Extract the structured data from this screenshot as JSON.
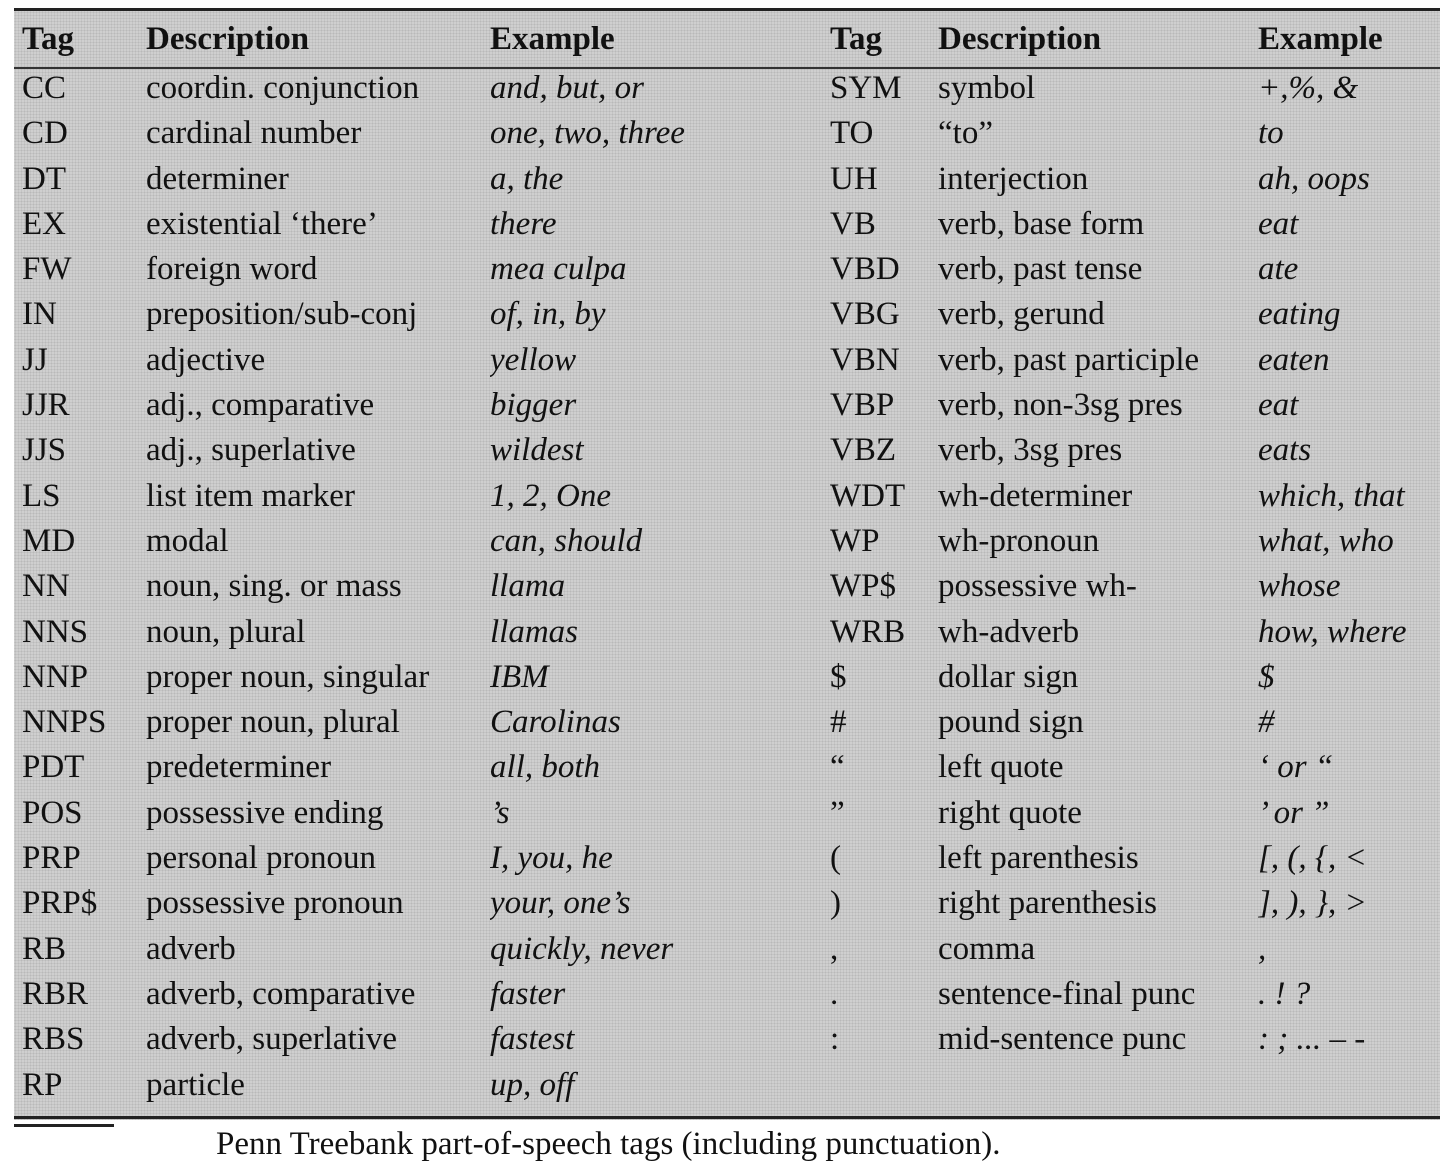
{
  "table": {
    "headers": [
      "Tag",
      "Description",
      "Example",
      "Tag",
      "Description",
      "Example"
    ],
    "rows": [
      [
        "CC",
        "coordin. conjunction",
        "and, but, or",
        "SYM",
        "symbol",
        "+,%, &"
      ],
      [
        "CD",
        "cardinal number",
        "one, two, three",
        "TO",
        "“to”",
        "to"
      ],
      [
        "DT",
        "determiner",
        "a, the",
        "UH",
        "interjection",
        "ah, oops"
      ],
      [
        "EX",
        "existential ‘there’",
        "there",
        "VB",
        "verb, base form",
        "eat"
      ],
      [
        "FW",
        "foreign word",
        "mea culpa",
        "VBD",
        "verb, past tense",
        "ate"
      ],
      [
        "IN",
        "preposition/sub-conj",
        "of, in, by",
        "VBG",
        "verb, gerund",
        "eating"
      ],
      [
        "JJ",
        "adjective",
        "yellow",
        "VBN",
        "verb, past participle",
        "eaten"
      ],
      [
        "JJR",
        "adj., comparative",
        "bigger",
        "VBP",
        "verb, non-3sg pres",
        "eat"
      ],
      [
        "JJS",
        "adj., superlative",
        "wildest",
        "VBZ",
        "verb, 3sg pres",
        "eats"
      ],
      [
        "LS",
        "list item marker",
        "1, 2, One",
        "WDT",
        "wh-determiner",
        "which, that"
      ],
      [
        "MD",
        "modal",
        "can, should",
        "WP",
        "wh-pronoun",
        "what, who"
      ],
      [
        "NN",
        "noun, sing. or mass",
        "llama",
        "WP$",
        "possessive wh-",
        "whose"
      ],
      [
        "NNS",
        "noun, plural",
        "llamas",
        "WRB",
        "wh-adverb",
        "how, where"
      ],
      [
        "NNP",
        "proper noun, singular",
        "IBM",
        "$",
        "dollar sign",
        "$"
      ],
      [
        "NNPS",
        "proper noun, plural",
        "Carolinas",
        "#",
        "pound sign",
        "#"
      ],
      [
        "PDT",
        "predeterminer",
        "all, both",
        "“",
        "left quote",
        "‘ or “"
      ],
      [
        "POS",
        "possessive ending",
        "’s",
        "”",
        "right quote",
        "’ or ”"
      ],
      [
        "PRP",
        "personal pronoun",
        "I, you, he",
        "(",
        "left parenthesis",
        "[, (, {, <"
      ],
      [
        "PRP$",
        "possessive pronoun",
        "your, one’s",
        ")",
        "right parenthesis",
        "], ), }, >"
      ],
      [
        "RB",
        "adverb",
        "quickly, never",
        ",",
        "comma",
        ","
      ],
      [
        "RBR",
        "adverb, comparative",
        "faster",
        ".",
        "sentence-final punc",
        ". ! ?"
      ],
      [
        "RBS",
        "adverb, superlative",
        "fastest",
        ":",
        "mid-sentence punc",
        ": ; ... – -"
      ],
      [
        "RP",
        "particle",
        "up, off",
        "",
        "",
        ""
      ]
    ]
  },
  "caption": "Penn Treebank part-of-speech tags (including punctuation)."
}
